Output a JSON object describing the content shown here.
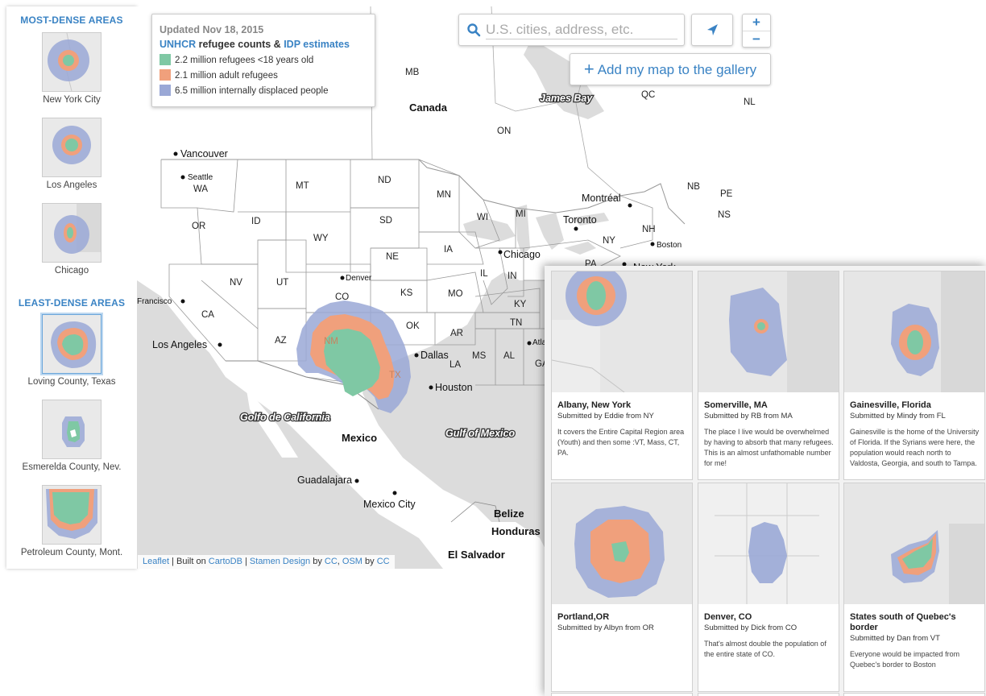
{
  "sidebar": {
    "most_title": "MOST-DENSE AREAS",
    "least_title": "LEAST-DENSE AREAS",
    "most": [
      {
        "label": "New York City"
      },
      {
        "label": "Los Angeles"
      },
      {
        "label": "Chicago"
      }
    ],
    "least": [
      {
        "label": "Loving County, Texas"
      },
      {
        "label": "Esmerelda County, Nev."
      },
      {
        "label": "Petroleum County, Mont."
      }
    ]
  },
  "legend": {
    "updated": "Updated Nov 18, 2015",
    "header_link1": "UNHCR",
    "header_mid": " refugee counts & ",
    "header_link2": "IDP estimates",
    "items": [
      {
        "label": "2.2 million refugees <18 years old",
        "color": "#7fc8a4"
      },
      {
        "label": "2.1 million adult refugees",
        "color": "#f0a07c"
      },
      {
        "label": "6.5 million internally displaced people",
        "color": "#9aa8d6"
      }
    ]
  },
  "search": {
    "placeholder": "U.S. cities, address, etc."
  },
  "zoom": {
    "in": "+",
    "out": "−"
  },
  "add_button": {
    "plus": "+",
    "label": "Add my map to the gallery"
  },
  "attribution": {
    "leaflet": "Leaflet",
    "sep1": " | Built on ",
    "cartodb": "CartoDB",
    "sep2": " | ",
    "stamen": "Stamen Design",
    "by1": " by ",
    "cc1": "CC",
    "sep3": ", ",
    "osm": "OSM",
    "by2": " by ",
    "cc2": "CC"
  },
  "map": {
    "states": [
      "WA",
      "OR",
      "ID",
      "MT",
      "WY",
      "ND",
      "SD",
      "NE",
      "MN",
      "IA",
      "WI",
      "MI",
      "IL",
      "IN",
      "NV",
      "CA",
      "UT",
      "CO",
      "KS",
      "MO",
      "KY",
      "OK",
      "AR",
      "TN",
      "AZ",
      "NM",
      "TX",
      "MS",
      "AL",
      "LA",
      "GA",
      "NY",
      "NH",
      "PA",
      "MB",
      "ON",
      "QC",
      "NL",
      "NB",
      "PE",
      "NS"
    ],
    "cities": [
      "Vancouver",
      "Seattle",
      "Denver",
      "Francisco",
      "Los Angeles",
      "Chicago",
      "Toronto",
      "Montréal",
      "Boston",
      "New York",
      "Dallas",
      "Houston",
      "Guadalajara",
      "Mexico City",
      "Atlan"
    ],
    "countries": [
      "Canada",
      "Mexico",
      "Belize",
      "Honduras",
      "El Salvador"
    ],
    "water": [
      "James Bay",
      "Golfo de California",
      "Gulf of Mexico"
    ]
  },
  "gallery": [
    {
      "title": "Albany, New York",
      "sub": "Submitted by Eddie from NY",
      "desc": "It covers the Entire Capital Region area (Youth) and then some :VT, Mass, CT, PA."
    },
    {
      "title": "Somerville, MA",
      "sub": "Submitted by RB from MA",
      "desc": "The place I live would be overwhelmed by having to absorb that many refugees. This is an almost unfathomable number for me!"
    },
    {
      "title": "Gainesville, Florida",
      "sub": "Submitted by Mindy from FL",
      "desc": "Gainesville is the home of the University of Florida. If the Syrians were here, the population would reach north to Valdosta, Georgia, and south to Tampa."
    },
    {
      "title": "Portland,OR",
      "sub": "Submitted by Albyn from OR",
      "desc": ""
    },
    {
      "title": "Denver, CO",
      "sub": "Submitted by Dick from CO",
      "desc": "That's almost double the population of the entire state of CO."
    },
    {
      "title": "States south of Quebec's border",
      "sub": "Submitted by Dan from VT",
      "desc": "Everyone would be impacted from Quebec's border to Boston"
    }
  ]
}
